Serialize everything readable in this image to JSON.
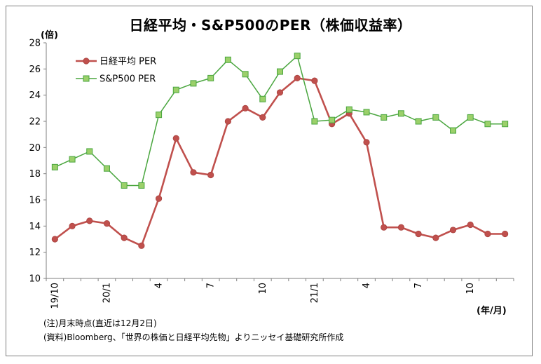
{
  "title": "日経平均・S&P500のPER（株価収益率）",
  "notes": {
    "line1": "(注)月末時点(直近は12月2日)",
    "line2": "(資料)Bloomberg、「世界の株価と日経平均先物」よりニッセイ基礎研究所作成"
  },
  "chart_data": {
    "type": "line",
    "title": "日経平均・S&P500のPER（株価収益率）",
    "ylabel": "(倍)",
    "xlabel": "(年/月)",
    "ylim": [
      10,
      28
    ],
    "ytick_step": 2,
    "yticks": [
      "10",
      "12",
      "14",
      "16",
      "18",
      "20",
      "22",
      "24",
      "26",
      "28"
    ],
    "grid": false,
    "legend_position": "top-left",
    "x": [
      "19/10",
      "19/11",
      "19/12",
      "20/1",
      "20/2",
      "20/3",
      "20/4",
      "20/5",
      "20/6",
      "20/7",
      "20/8",
      "20/9",
      "20/10",
      "20/11",
      "20/12",
      "21/1",
      "21/2",
      "21/3",
      "21/4",
      "21/5",
      "21/6",
      "21/7",
      "21/8",
      "21/9",
      "21/10",
      "21/11",
      "21/12"
    ],
    "x_tick_labels": [
      "19/10",
      "",
      "",
      "20/1",
      "",
      "",
      "4",
      "",
      "",
      "7",
      "",
      "",
      "10",
      "",
      "",
      "21/1",
      "",
      "",
      "4",
      "",
      "",
      "7",
      "",
      "",
      "10",
      "",
      ""
    ],
    "series": [
      {
        "name": "日経平均 PER",
        "color": "#c0504d",
        "marker": "circle",
        "values": [
          13.0,
          14.0,
          14.4,
          14.2,
          13.1,
          12.5,
          16.1,
          20.7,
          18.1,
          17.9,
          22.0,
          23.0,
          22.3,
          24.2,
          25.3,
          25.1,
          21.8,
          22.6,
          20.4,
          13.9,
          13.9,
          13.4,
          13.1,
          13.7,
          14.1,
          13.4,
          13.4
        ]
      },
      {
        "name": "S&P500 PER",
        "color": "#4aa63f",
        "marker": "square",
        "marker_fill": "#9bd06a",
        "values": [
          18.5,
          19.1,
          19.7,
          18.4,
          17.1,
          17.1,
          22.5,
          24.4,
          24.9,
          25.3,
          26.7,
          25.6,
          23.7,
          25.8,
          27.0,
          22.0,
          22.1,
          22.9,
          22.7,
          22.3,
          22.6,
          22.0,
          22.3,
          21.3,
          22.3,
          21.8,
          21.8
        ]
      }
    ]
  }
}
